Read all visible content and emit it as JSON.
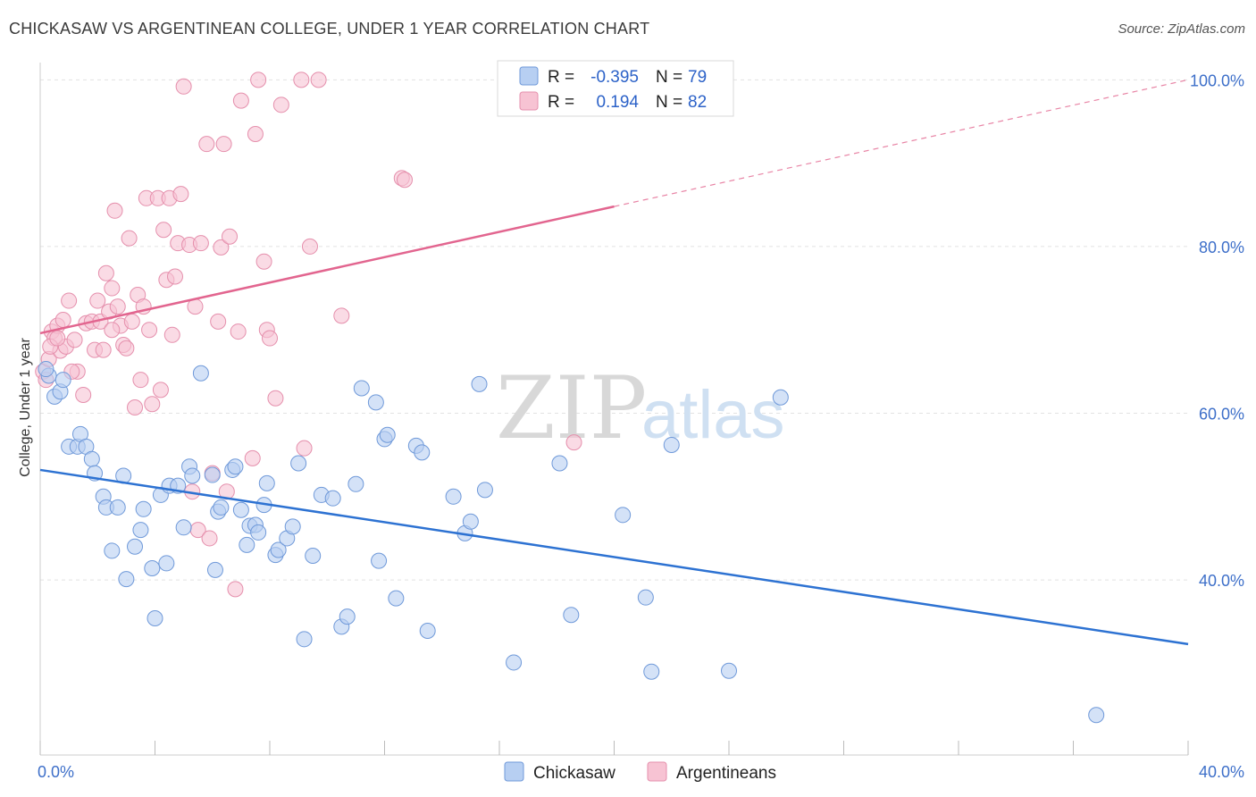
{
  "title": "CHICKASAW VS ARGENTINEAN COLLEGE, UNDER 1 YEAR CORRELATION CHART",
  "source": "Source: ZipAtlas.com",
  "watermark": {
    "zip": "ZIP",
    "atlas": "atlas"
  },
  "colors": {
    "blue_fill": "#b7cff2",
    "blue_stroke": "#6f99d9",
    "blue_line": "#2d72d2",
    "pink_fill": "#f7c3d3",
    "pink_stroke": "#e58fac",
    "pink_line": "#e2658f",
    "tick_label": "#3d6fc9",
    "grid": "#e2e2e2"
  },
  "legend": {
    "r_label": "R =",
    "n_label": "N =",
    "rows": [
      {
        "r": "-0.395",
        "n": "79"
      },
      {
        "r": "0.194",
        "n": "82"
      }
    ]
  },
  "chart_data": {
    "type": "scatter",
    "title": "CHICKASAW VS ARGENTINEAN COLLEGE, UNDER 1 YEAR CORRELATION CHART",
    "xlabel": "",
    "ylabel": "College, Under 1 year",
    "xlim": [
      0,
      40
    ],
    "ylim": [
      19,
      101
    ],
    "x_ticks": [
      0,
      4,
      8,
      12,
      16,
      20,
      24,
      28,
      32,
      36,
      40
    ],
    "x_tick_labels": [
      {
        "value": 0,
        "label": "0.0%"
      },
      {
        "value": 40,
        "label": "40.0%"
      }
    ],
    "y_ticks": [
      {
        "value": 40,
        "label": "40.0%"
      },
      {
        "value": 60,
        "label": "60.0%"
      },
      {
        "value": 80,
        "label": "80.0%"
      },
      {
        "value": 100,
        "label": "100.0%"
      }
    ],
    "grid": true,
    "legend_position": "top-center",
    "series": [
      {
        "name": "Chickasaw",
        "color": "#b7cff2",
        "trend": {
          "x": [
            0,
            40
          ],
          "y": [
            53.2,
            32.3
          ],
          "dashed_from": null
        },
        "points": [
          [
            0.3,
            64.5
          ],
          [
            0.5,
            62
          ],
          [
            0.7,
            62.6
          ],
          [
            0.8,
            64
          ],
          [
            1.0,
            56
          ],
          [
            1.3,
            56
          ],
          [
            1.4,
            57.5
          ],
          [
            1.6,
            56
          ],
          [
            1.8,
            54.5
          ],
          [
            1.9,
            52.8
          ],
          [
            2.2,
            50
          ],
          [
            2.3,
            48.7
          ],
          [
            2.5,
            43.5
          ],
          [
            2.7,
            48.7
          ],
          [
            2.9,
            52.5
          ],
          [
            3.0,
            40.1
          ],
          [
            3.3,
            44
          ],
          [
            3.5,
            46
          ],
          [
            3.6,
            48.5
          ],
          [
            3.9,
            41.4
          ],
          [
            4.0,
            35.4
          ],
          [
            4.2,
            50.2
          ],
          [
            4.4,
            42
          ],
          [
            4.5,
            51.3
          ],
          [
            4.8,
            51.3
          ],
          [
            5.0,
            46.3
          ],
          [
            5.2,
            53.6
          ],
          [
            5.3,
            52.5
          ],
          [
            5.6,
            64.8
          ],
          [
            6.0,
            52.6
          ],
          [
            6.1,
            41.2
          ],
          [
            6.2,
            48.2
          ],
          [
            6.3,
            48.7
          ],
          [
            6.7,
            53.2
          ],
          [
            6.8,
            53.6
          ],
          [
            7.0,
            48.4
          ],
          [
            7.2,
            44.2
          ],
          [
            7.3,
            46.5
          ],
          [
            7.5,
            46.6
          ],
          [
            7.6,
            45.7
          ],
          [
            7.8,
            49
          ],
          [
            7.9,
            51.6
          ],
          [
            8.2,
            43
          ],
          [
            8.3,
            43.6
          ],
          [
            8.6,
            45
          ],
          [
            8.8,
            46.4
          ],
          [
            9.0,
            54
          ],
          [
            9.2,
            32.9
          ],
          [
            9.5,
            42.9
          ],
          [
            9.8,
            50.2
          ],
          [
            10.2,
            49.8
          ],
          [
            10.5,
            34.4
          ],
          [
            10.7,
            35.6
          ],
          [
            11.0,
            51.5
          ],
          [
            11.2,
            63
          ],
          [
            11.7,
            61.3
          ],
          [
            11.8,
            42.3
          ],
          [
            12.0,
            56.9
          ],
          [
            12.1,
            57.4
          ],
          [
            12.4,
            37.8
          ],
          [
            13.1,
            56.1
          ],
          [
            13.3,
            55.3
          ],
          [
            13.5,
            33.9
          ],
          [
            14.4,
            50
          ],
          [
            14.8,
            45.6
          ],
          [
            15.0,
            47
          ],
          [
            15.3,
            63.5
          ],
          [
            15.5,
            50.8
          ],
          [
            16.5,
            30.1
          ],
          [
            18.1,
            54
          ],
          [
            18.5,
            35.8
          ],
          [
            20.3,
            47.8
          ],
          [
            21.1,
            37.9
          ],
          [
            21.3,
            29
          ],
          [
            22.0,
            56.2
          ],
          [
            24.0,
            29.1
          ],
          [
            25.8,
            61.9
          ],
          [
            36.8,
            23.8
          ],
          [
            0.2,
            65.3
          ]
        ]
      },
      {
        "name": "Argentineans",
        "color": "#f7c3d3",
        "trend": {
          "x": [
            0,
            40
          ],
          "y": [
            69.6,
            100
          ],
          "dashed_from": 20
        },
        "points": [
          [
            0.1,
            65
          ],
          [
            0.2,
            64
          ],
          [
            0.3,
            66.5
          ],
          [
            0.4,
            69.8
          ],
          [
            0.5,
            69
          ],
          [
            0.6,
            70.5
          ],
          [
            0.7,
            67.5
          ],
          [
            0.8,
            71.2
          ],
          [
            0.9,
            68
          ],
          [
            1.0,
            73.5
          ],
          [
            1.2,
            68.8
          ],
          [
            1.3,
            65
          ],
          [
            1.5,
            62.2
          ],
          [
            1.6,
            70.8
          ],
          [
            1.8,
            71
          ],
          [
            1.9,
            67.6
          ],
          [
            2.0,
            73.5
          ],
          [
            2.1,
            71
          ],
          [
            2.2,
            67.6
          ],
          [
            2.3,
            76.8
          ],
          [
            2.4,
            72.2
          ],
          [
            2.5,
            75
          ],
          [
            2.6,
            84.3
          ],
          [
            2.7,
            72.8
          ],
          [
            2.8,
            70.5
          ],
          [
            2.9,
            68.2
          ],
          [
            3.0,
            67.8
          ],
          [
            3.1,
            81
          ],
          [
            3.3,
            60.7
          ],
          [
            3.4,
            74.2
          ],
          [
            3.5,
            64
          ],
          [
            3.6,
            72.8
          ],
          [
            3.7,
            85.8
          ],
          [
            3.8,
            70
          ],
          [
            3.9,
            61.1
          ],
          [
            4.1,
            85.8
          ],
          [
            4.2,
            62.8
          ],
          [
            4.3,
            82
          ],
          [
            4.4,
            76
          ],
          [
            4.5,
            85.8
          ],
          [
            4.6,
            69.4
          ],
          [
            4.7,
            76.4
          ],
          [
            4.8,
            80.4
          ],
          [
            4.9,
            86.3
          ],
          [
            5.0,
            99.2
          ],
          [
            5.2,
            80.2
          ],
          [
            5.3,
            50.6
          ],
          [
            5.4,
            72.8
          ],
          [
            5.5,
            46
          ],
          [
            5.6,
            80.4
          ],
          [
            5.8,
            92.3
          ],
          [
            5.9,
            45
          ],
          [
            6.0,
            52.8
          ],
          [
            6.2,
            71
          ],
          [
            6.3,
            79.9
          ],
          [
            6.4,
            92.3
          ],
          [
            6.5,
            50.6
          ],
          [
            6.6,
            81.2
          ],
          [
            6.8,
            38.9
          ],
          [
            6.9,
            69.8
          ],
          [
            7.0,
            97.5
          ],
          [
            7.4,
            54.6
          ],
          [
            7.5,
            93.5
          ],
          [
            7.6,
            100
          ],
          [
            7.8,
            78.2
          ],
          [
            7.9,
            70
          ],
          [
            8.0,
            69
          ],
          [
            8.2,
            61.8
          ],
          [
            8.4,
            97
          ],
          [
            9.1,
            100
          ],
          [
            9.2,
            55.8
          ],
          [
            9.4,
            80
          ],
          [
            9.7,
            100
          ],
          [
            10.5,
            71.7
          ],
          [
            12.6,
            88.2
          ],
          [
            12.7,
            88
          ],
          [
            18.6,
            56.5
          ],
          [
            0.35,
            68
          ],
          [
            1.1,
            65
          ],
          [
            0.6,
            69
          ],
          [
            3.2,
            71
          ],
          [
            2.5,
            70
          ]
        ]
      }
    ]
  },
  "bottom_legend": [
    {
      "label": "Chickasaw"
    },
    {
      "label": "Argentineans"
    }
  ]
}
